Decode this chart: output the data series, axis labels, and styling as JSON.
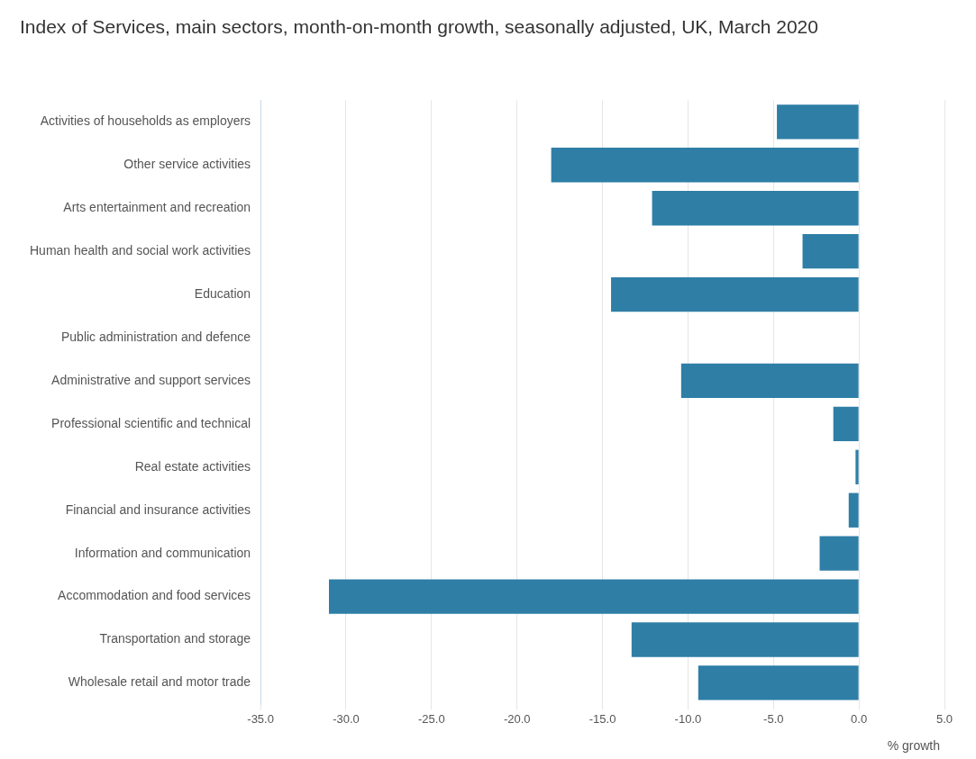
{
  "chart_data": {
    "type": "bar",
    "orientation": "horizontal",
    "title": "Index of Services, main sectors, month-on-month growth, seasonally adjusted, UK, March 2020",
    "xlabel": "% growth",
    "categories": [
      "Activities of households as employers",
      "Other service activities",
      "Arts entertainment and recreation",
      "Human health and social work activities",
      "Education",
      "Public administration and defence",
      "Administrative and support services",
      "Professional scientific and technical",
      "Real estate activities",
      "Financial and insurance activities",
      "Information and communication",
      "Accommodation and food services",
      "Transportation and storage",
      "Wholesale retail and motor trade"
    ],
    "values": [
      -4.8,
      -18.0,
      -12.1,
      -3.3,
      -14.5,
      0,
      -10.4,
      -1.5,
      -0.2,
      -0.6,
      -2.3,
      -31.0,
      -13.3,
      -9.4
    ],
    "color": "#2e7ea6",
    "xlim": [
      -35,
      5
    ],
    "xticks": [
      {
        "value": -35,
        "label": "-35.0"
      },
      {
        "value": -30,
        "label": "-30.0"
      },
      {
        "value": -25,
        "label": "-25.0"
      },
      {
        "value": -20,
        "label": "-20.0"
      },
      {
        "value": -15,
        "label": "-15.0"
      },
      {
        "value": -10,
        "label": "-10.0"
      },
      {
        "value": -5,
        "label": "-5.0"
      },
      {
        "value": 0,
        "label": "0.0"
      },
      {
        "value": 5,
        "label": "5.0"
      }
    ],
    "grid": "x",
    "legend": false
  }
}
